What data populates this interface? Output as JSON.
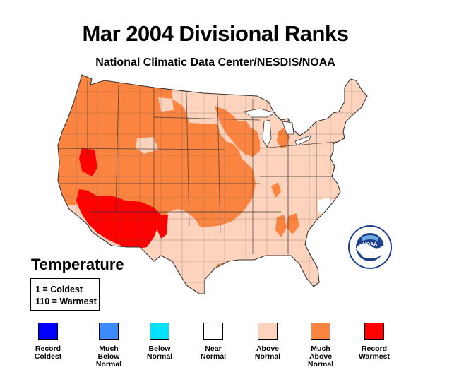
{
  "title": "Mar 2004 Divisional Ranks",
  "subtitle": "National Climatic Data Center/NESDIS/NOAA",
  "legend": {
    "heading": "Temperature",
    "rank_coldest": "1 = Coldest",
    "rank_warmest": "110 = Warmest",
    "categories": [
      {
        "label": "Record\nColdest",
        "color": "#0000ff"
      },
      {
        "label": "Much\nBelow\nNormal",
        "color": "#3c8cff"
      },
      {
        "label": "Below\nNormal",
        "color": "#00e0ff"
      },
      {
        "label": "Near\nNormal",
        "color": "#ffffff"
      },
      {
        "label": "Above\nNormal",
        "color": "#fdd3bd"
      },
      {
        "label": "Much\nAbove\nNormal",
        "color": "#fb8441"
      },
      {
        "label": "Record\nWarmest",
        "color": "#ff0000"
      }
    ]
  },
  "logo": {
    "icon": "noaa-logo-icon",
    "text": "NOAA"
  },
  "colors": {
    "much_above": "#fb8441",
    "above": "#fdd3bd",
    "record": "#ff0000",
    "near": "#ffffff",
    "outline": "#555555"
  }
}
